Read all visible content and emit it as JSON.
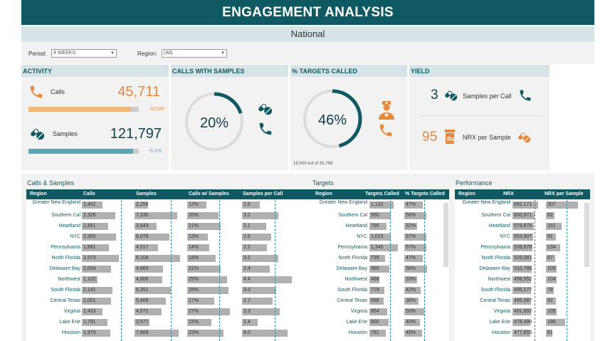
{
  "header": {
    "title": "ENGAGEMENT ANALYSIS",
    "subtitle": "National"
  },
  "filters": {
    "period_label": "Period:",
    "period_value": "4 WEEKS",
    "region_label": "Region:",
    "region_value": "(All)"
  },
  "activity": {
    "title": "ACTIVITY",
    "calls": {
      "label": "Calls",
      "value": "45,711",
      "change": "-10.6%",
      "fill": 0.92,
      "color": "#f0b878"
    },
    "samples": {
      "label": "Samples",
      "value": "121,797",
      "change": "-6.2%",
      "fill": 0.95,
      "color": "#5aa5b5"
    }
  },
  "calls_with_samples": {
    "title": "CALLS WITH SAMPLES",
    "value": "20%",
    "ratio": 0.2
  },
  "targets_called": {
    "title": "% TARGETS CALLED",
    "value": "46%",
    "ratio": 0.46,
    "footnote": "19,933 out of 43,768"
  },
  "yield": {
    "title": "YIELD",
    "samples_value": "3",
    "samples_label": "Samples per Call",
    "nrx_value": "95",
    "nrx_label": "NRX per Sample"
  },
  "tables": {
    "calls_samples": {
      "title": "Calls & Samples",
      "headers": [
        "Region",
        "Calls",
        "Samples",
        "Calls w/ Samples",
        "Samples per Call"
      ],
      "rows": [
        {
          "region": "Greater New England",
          "calls": "1,452",
          "calls_v": 0.42,
          "samples": "2,256",
          "samples_v": 0.29,
          "cws": "12%",
          "cws_v": 0.45,
          "spc": "1.6",
          "spc_v": 0.36
        },
        {
          "region": "Southern Cal",
          "calls": "2,326",
          "calls_v": 0.67,
          "samples": "7,335",
          "samples_v": 0.93,
          "cws": "20%",
          "cws_v": 0.74,
          "spc": "3.2",
          "spc_v": 0.73
        },
        {
          "region": "Heartland",
          "calls": "1,851",
          "calls_v": 0.53,
          "samples": "3,843",
          "samples_v": 0.49,
          "cws": "21%",
          "cws_v": 0.78,
          "spc": "2.1",
          "spc_v": 0.48
        },
        {
          "region": "NYC",
          "calls": "2,365",
          "calls_v": 0.68,
          "samples": "6,078",
          "samples_v": 0.77,
          "cws": "13%",
          "cws_v": 0.48,
          "spc": "2.6",
          "spc_v": 0.59
        },
        {
          "region": "Pennsylvania",
          "calls": "1,881",
          "calls_v": 0.54,
          "samples": "4,017",
          "samples_v": 0.51,
          "cws": "14%",
          "cws_v": 0.52,
          "spc": "2.2",
          "spc_v": 0.5
        },
        {
          "region": "North Florida",
          "calls": "2,573",
          "calls_v": 0.74,
          "samples": "8,108",
          "samples_v": 1.0,
          "cws": "18%",
          "cws_v": 0.67,
          "spc": "3.2",
          "spc_v": 0.73
        },
        {
          "region": "Delaware Bay",
          "calls": "2,004",
          "calls_v": 0.58,
          "samples": "4,869",
          "samples_v": 0.62,
          "cws": "21%",
          "cws_v": 0.78,
          "spc": "2.4",
          "spc_v": 0.55
        },
        {
          "region": "Northwest",
          "calls": "1,102",
          "calls_v": 0.32,
          "samples": "4,806",
          "samples_v": 0.61,
          "cws": "25%",
          "cws_v": 0.93,
          "spc": "4.4",
          "spc_v": 1.0
        },
        {
          "region": "South Florida",
          "calls": "2,141",
          "calls_v": 0.62,
          "samples": "6,351",
          "samples_v": 0.8,
          "cws": "26%",
          "cws_v": 0.96,
          "spc": "3.0",
          "spc_v": 0.68
        },
        {
          "region": "Central Texas",
          "calls": "2,001",
          "calls_v": 0.58,
          "samples": "5,409",
          "samples_v": 0.68,
          "cws": "17%",
          "cws_v": 0.63,
          "spc": "2.7",
          "spc_v": 0.61
        },
        {
          "region": "Virginia",
          "calls": "1,433",
          "calls_v": 0.41,
          "samples": "4,671",
          "samples_v": 0.59,
          "cws": "27%",
          "cws_v": 1.0,
          "spc": "3.3",
          "spc_v": 0.75
        },
        {
          "region": "Lake Erie",
          "calls": "1,791",
          "calls_v": 0.52,
          "samples": "2,577",
          "samples_v": 0.33,
          "cws": "15%",
          "cws_v": 0.56,
          "spc": "1.4",
          "spc_v": 0.32
        },
        {
          "region": "Houston",
          "calls": "1,979",
          "calls_v": 0.57,
          "samples": "7,869",
          "samples_v": 0.97,
          "cws": "23%",
          "cws_v": 0.85,
          "spc": "4.0",
          "spc_v": 0.91
        }
      ]
    },
    "targets": {
      "title": "Targets",
      "headers": [
        "Region",
        "Targets Called",
        "% Targets Called"
      ],
      "rows": [
        {
          "region": "Greater New England",
          "tc": "1,132",
          "tc_v": 0.84,
          "pct": "47%",
          "pct_v": 0.81
        },
        {
          "region": "Southern Cal",
          "tc": "990",
          "tc_v": 0.74,
          "pct": "56%",
          "pct_v": 0.97
        },
        {
          "region": "Heartland",
          "tc": "795",
          "tc_v": 0.59,
          "pct": "32%",
          "pct_v": 0.55
        },
        {
          "region": "NYC",
          "tc": "1,015",
          "tc_v": 0.75,
          "pct": "57%",
          "pct_v": 0.98
        },
        {
          "region": "Pennsylvania",
          "tc": "1,345",
          "tc_v": 1.0,
          "pct": "57%",
          "pct_v": 0.98
        },
        {
          "region": "North Florida",
          "tc": "739",
          "tc_v": 0.55,
          "pct": "47%",
          "pct_v": 0.81
        },
        {
          "region": "Delaware Bay",
          "tc": "960",
          "tc_v": 0.71,
          "pct": "58%",
          "pct_v": 1.0
        },
        {
          "region": "Northwest",
          "tc": "488",
          "tc_v": 0.36,
          "pct": "33%",
          "pct_v": 0.57
        },
        {
          "region": "South Florida",
          "tc": "719",
          "tc_v": 0.53,
          "pct": "42%",
          "pct_v": 0.72
        },
        {
          "region": "Central Texas",
          "tc": "686",
          "tc_v": 0.51,
          "pct": "36%",
          "pct_v": 0.62
        },
        {
          "region": "Virginia",
          "tc": "854",
          "tc_v": 0.63,
          "pct": "50%",
          "pct_v": 0.86
        },
        {
          "region": "Lake Erie",
          "tc": "900",
          "tc_v": 0.67,
          "pct": "40%",
          "pct_v": 0.69
        },
        {
          "region": "Houston",
          "tc": "781",
          "tc_v": 0.58,
          "pct": "45%",
          "pct_v": 0.78
        }
      ]
    },
    "performance": {
      "title": "Performance",
      "headers": [
        "Region",
        "NRX",
        "NRX per Sample"
      ],
      "rows": [
        {
          "region": "Greater New England",
          "nrx": "692,171",
          "nrx_v": 1.0,
          "nps": "307",
          "nps_v": 1.0
        },
        {
          "region": "Southern Cal",
          "nrx": "600,971",
          "nrx_v": 0.87,
          "nps": "82",
          "nps_v": 0.27
        },
        {
          "region": "Heartland",
          "nrx": "578,676",
          "nrx_v": 0.84,
          "nps": "151",
          "nps_v": 0.49
        },
        {
          "region": "NYC",
          "nrx": "553,907",
          "nrx_v": 0.8,
          "nps": "91",
          "nps_v": 0.3
        },
        {
          "region": "Pennsylvania",
          "nrx": "539,670",
          "nrx_v": 0.78,
          "nps": "134",
          "nps_v": 0.44
        },
        {
          "region": "North Florida",
          "nrx": "529,081",
          "nrx_v": 0.76,
          "nps": "87",
          "nps_v": 0.28
        },
        {
          "region": "Delaware Bay",
          "nrx": "510,786",
          "nrx_v": 0.74,
          "nps": "105",
          "nps_v": 0.34
        },
        {
          "region": "Northwest",
          "nrx": "498,552",
          "nrx_v": 0.72,
          "nps": "104",
          "nps_v": 0.34
        },
        {
          "region": "South Florida",
          "nrx": "495,177",
          "nrx_v": 0.72,
          "nps": "78",
          "nps_v": 0.25
        },
        {
          "region": "Central Texas",
          "nrx": "495,087",
          "nrx_v": 0.72,
          "nps": "92",
          "nps_v": 0.3
        },
        {
          "region": "Virginia",
          "nrx": "491,692",
          "nrx_v": 0.71,
          "nps": "105",
          "nps_v": 0.34
        },
        {
          "region": "Lake Erie",
          "nrx": "478,499",
          "nrx_v": 0.69,
          "nps": "186",
          "nps_v": 0.61
        },
        {
          "region": "Houston",
          "nrx": "477,855",
          "nrx_v": 0.69,
          "nps": "61",
          "nps_v": 0.2
        }
      ]
    }
  },
  "colors": {
    "teal": "#0f5a62",
    "orange": "#e8883a",
    "light": "#d7e4e7",
    "ring_bg": "#dcdcdc"
  }
}
